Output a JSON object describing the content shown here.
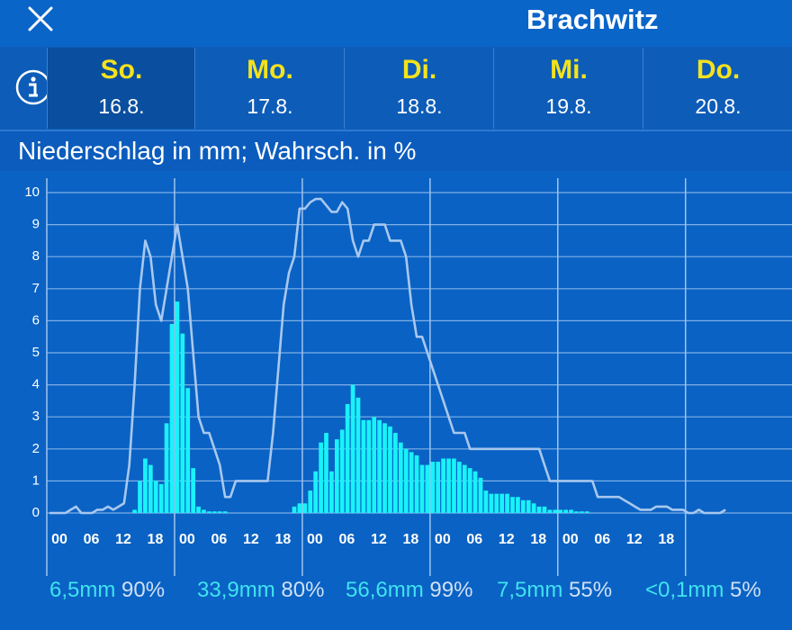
{
  "header": {
    "title": "Brachwitz",
    "close_icon": "close-icon",
    "info_icon": "info-icon"
  },
  "days": [
    {
      "name": "So.",
      "date": "16.8.",
      "selected": true
    },
    {
      "name": "Mo.",
      "date": "17.8.",
      "selected": false
    },
    {
      "name": "Di.",
      "date": "18.8.",
      "selected": false
    },
    {
      "name": "Mi.",
      "date": "19.8.",
      "selected": false
    },
    {
      "name": "Do.",
      "date": "20.8.",
      "selected": false
    }
  ],
  "subtitle": "Niederschlag in mm; Wahrsch. in %",
  "chart_data": {
    "type": "bar",
    "y_ticks": [
      "0",
      "1",
      "2",
      "3",
      "4",
      "5",
      "6",
      "7",
      "8",
      "9",
      "10"
    ],
    "ylim": [
      0,
      10
    ],
    "x_tick_labels": [
      "00",
      "06",
      "12",
      "18"
    ],
    "x_unit": "hours, 5 days from 16.8. 00:00, 1 value per hour",
    "grid": true,
    "colors": {
      "precip": "#19f2fa",
      "probability": "#a8c8ef"
    },
    "series": [
      {
        "kind": "bar",
        "values": [
          0,
          0,
          0,
          0,
          0,
          0,
          0,
          0,
          0,
          0,
          0,
          0,
          0,
          0,
          0,
          0,
          0.1,
          1,
          1.7,
          1.5,
          1,
          0.9,
          2.8,
          5.9,
          6.6,
          5.6,
          3.9,
          1.4,
          0.2,
          0.1,
          0.05,
          0.05,
          0.05,
          0.05,
          0,
          0,
          0,
          0,
          0,
          0,
          0,
          0,
          0,
          0,
          0,
          0,
          0.2,
          0.3,
          0.3,
          0.7,
          1.3,
          2.2,
          2.5,
          1.3,
          2.3,
          2.6,
          3.4,
          4,
          3.6,
          2.9,
          2.9,
          3,
          2.9,
          2.8,
          2.7,
          2.5,
          2.2,
          2,
          1.9,
          1.8,
          1.5,
          1.5,
          1.6,
          1.6,
          1.7,
          1.7,
          1.7,
          1.6,
          1.5,
          1.4,
          1.3,
          1.1,
          0.7,
          0.6,
          0.6,
          0.6,
          0.6,
          0.5,
          0.5,
          0.4,
          0.4,
          0.3,
          0.2,
          0.2,
          0.1,
          0.1,
          0.1,
          0.1,
          0.1,
          0.05,
          0.05,
          0.05,
          0,
          0,
          0,
          0,
          0,
          0,
          0,
          0,
          0,
          0,
          0,
          0,
          0,
          0,
          0,
          0,
          0,
          0,
          0,
          0,
          0,
          0,
          0,
          0,
          0,
          0,
          0,
          0,
          0,
          0,
          0,
          0,
          0,
          0,
          0,
          0,
          0,
          0
        ]
      },
      {
        "kind": "line",
        "values": [
          0,
          0,
          0,
          0,
          0.1,
          0.2,
          0,
          0,
          0,
          0.1,
          0.1,
          0.2,
          0.1,
          0.2,
          0.3,
          1.5,
          4,
          7,
          8.5,
          8,
          6.5,
          6,
          7,
          8,
          9,
          8,
          7,
          5,
          3,
          2.5,
          2.5,
          2,
          1.5,
          0.5,
          0.5,
          1,
          1,
          1,
          1,
          1,
          1,
          1,
          2.5,
          4.5,
          6.5,
          7.5,
          8,
          9.5,
          9.5,
          9.7,
          9.8,
          9.8,
          9.6,
          9.4,
          9.4,
          9.7,
          9.5,
          8.5,
          8,
          8.5,
          8.5,
          9,
          9,
          9,
          8.5,
          8.5,
          8.5,
          8,
          6.5,
          5.5,
          5.5,
          5,
          4.5,
          4,
          3.5,
          3,
          2.5,
          2.5,
          2.5,
          2,
          2,
          2,
          2,
          2,
          2,
          2,
          2,
          2,
          2,
          2,
          2,
          2,
          2,
          1.5,
          1,
          1,
          1,
          1,
          1,
          1,
          1,
          1,
          1,
          0.5,
          0.5,
          0.5,
          0.5,
          0.5,
          0.4,
          0.3,
          0.2,
          0.1,
          0.1,
          0.1,
          0.2,
          0.2,
          0.2,
          0.1,
          0.1,
          0.1,
          0,
          0,
          0.1,
          0,
          0,
          0,
          0,
          0.1
        ]
      }
    ]
  },
  "summaries": [
    {
      "mm": "6,5mm",
      "pct": "90%"
    },
    {
      "mm": "33,9mm",
      "pct": "80%"
    },
    {
      "mm": "56,6mm",
      "pct": "99%"
    },
    {
      "mm": "7,5mm",
      "pct": "55%"
    },
    {
      "mm": "<0,1mm",
      "pct": "5%"
    }
  ]
}
